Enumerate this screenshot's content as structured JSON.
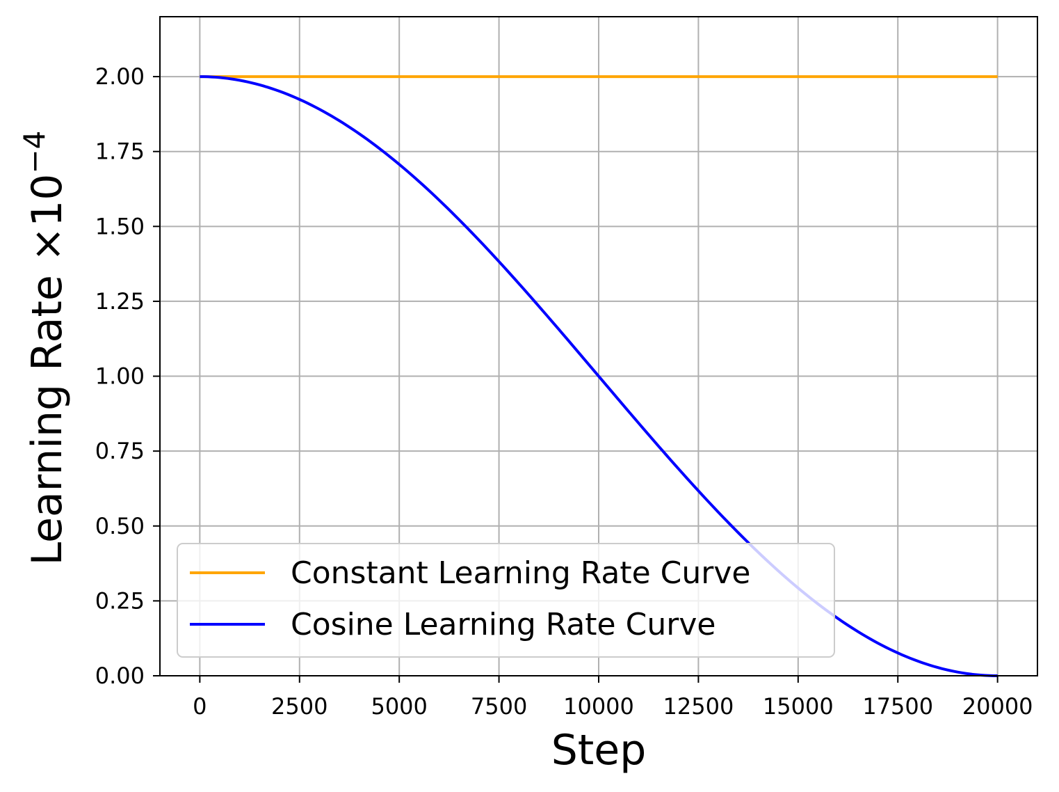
{
  "chart_data": {
    "type": "line",
    "xlabel": "Step",
    "ylabel_main": "Learning Rate ×10",
    "ylabel_exp": "−4",
    "xlim": [
      -1000,
      21000
    ],
    "ylim": [
      0,
      2.2
    ],
    "xticks": [
      0,
      2500,
      5000,
      7500,
      10000,
      12500,
      15000,
      17500,
      20000
    ],
    "yticks": [
      0.0,
      0.25,
      0.5,
      0.75,
      1.0,
      1.25,
      1.5,
      1.75,
      2.0
    ],
    "ytick_labels": [
      "0.00",
      "0.25",
      "0.50",
      "0.75",
      "1.00",
      "1.25",
      "1.50",
      "1.75",
      "2.00"
    ],
    "grid": true,
    "legend_position": "lower-left",
    "series": [
      {
        "name": "Constant Learning Rate Curve",
        "color": "#FFA500",
        "x": [
          0,
          2500,
          5000,
          7500,
          10000,
          12500,
          15000,
          17500,
          20000
        ],
        "y": [
          2.0,
          2.0,
          2.0,
          2.0,
          2.0,
          2.0,
          2.0,
          2.0,
          2.0
        ]
      },
      {
        "name": "Cosine Learning Rate Curve",
        "color": "#0000FF",
        "x": [
          0,
          1000,
          2000,
          3000,
          4000,
          5000,
          6000,
          7000,
          8000,
          9000,
          10000,
          11000,
          12000,
          13000,
          14000,
          15000,
          16000,
          17000,
          18000,
          19000,
          20000
        ],
        "y": [
          2.0,
          1.9877,
          1.9511,
          1.891,
          1.809,
          1.7071,
          1.5878,
          1.454,
          1.309,
          1.1564,
          1.0,
          0.8436,
          0.691,
          0.546,
          0.4122,
          0.2929,
          0.191,
          0.109,
          0.0489,
          0.0123,
          0.0
        ]
      }
    ]
  }
}
